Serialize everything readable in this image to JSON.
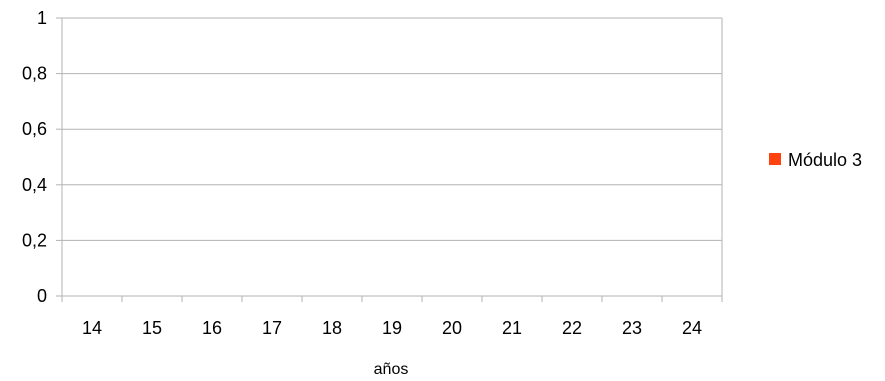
{
  "chart_data": {
    "type": "bar",
    "categories": [
      "14",
      "15",
      "16",
      "17",
      "18",
      "19",
      "20",
      "21",
      "22",
      "23",
      "24"
    ],
    "series": [
      {
        "name": "Módulo 3",
        "values": [
          0,
          0,
          0,
          0,
          0,
          0,
          0,
          0,
          0,
          0,
          0
        ],
        "color": "#ff420e"
      }
    ],
    "xlabel": "años",
    "ylabel": "",
    "ylim": [
      0,
      1
    ],
    "yticks": [
      "0",
      "0,2",
      "0,4",
      "0,6",
      "0,8",
      "1"
    ],
    "grid": true,
    "legend_position": "right",
    "colors": {
      "gridline": "#b3b3b3",
      "axis": "#b3b3b3",
      "series": "#ff420e"
    }
  }
}
